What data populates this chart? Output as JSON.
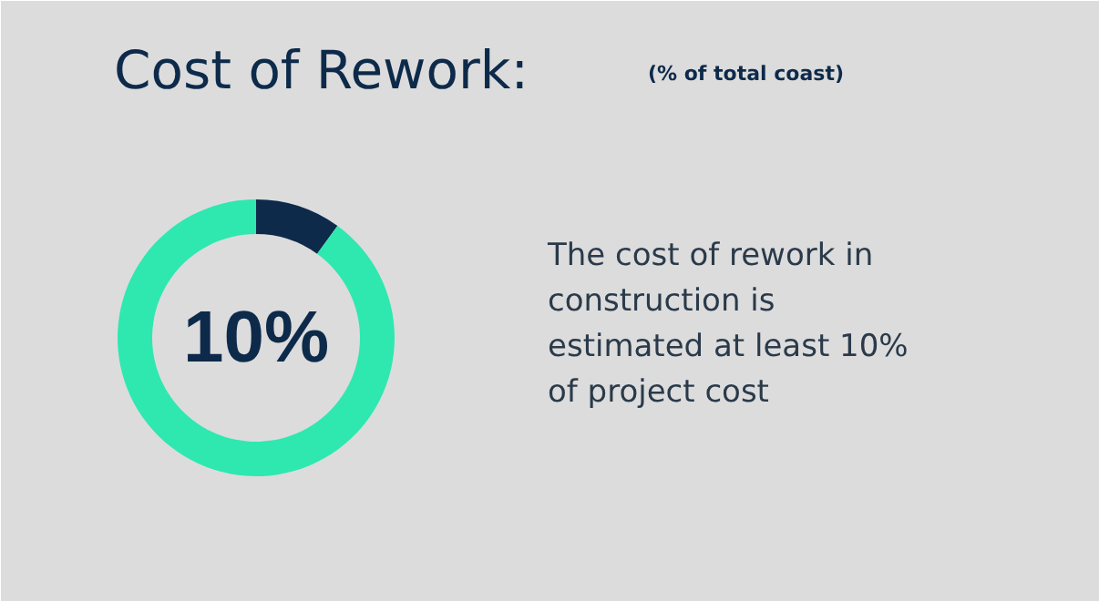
{
  "chart_data": {
    "type": "donut",
    "title": "Cost of Rework:",
    "subtitle": "(% of total coast)",
    "categories": [
      null,
      null
    ],
    "values": [
      10,
      90
    ],
    "colors": [
      "#0d2a4a",
      "#2ee8b0"
    ],
    "annotations": [
      "10%",
      "The cost of rework in\nconstruction is\nestimated at least 10%\nof project cost"
    ]
  }
}
